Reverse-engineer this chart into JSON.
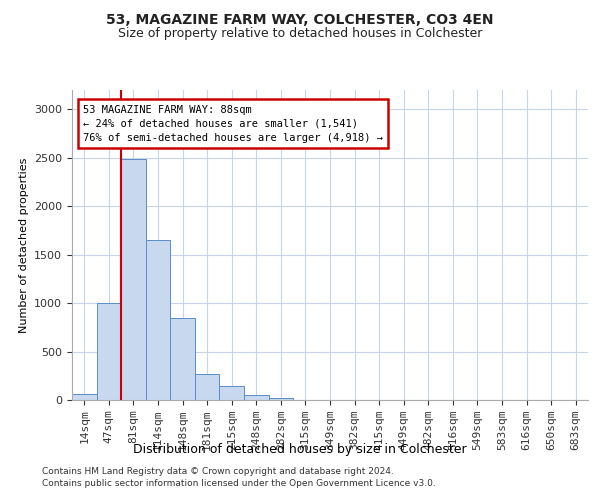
{
  "title1": "53, MAGAZINE FARM WAY, COLCHESTER, CO3 4EN",
  "title2": "Size of property relative to detached houses in Colchester",
  "xlabel": "Distribution of detached houses by size in Colchester",
  "ylabel": "Number of detached properties",
  "bar_labels": [
    "14sqm",
    "47sqm",
    "81sqm",
    "114sqm",
    "148sqm",
    "181sqm",
    "215sqm",
    "248sqm",
    "282sqm",
    "315sqm",
    "349sqm",
    "382sqm",
    "415sqm",
    "449sqm",
    "482sqm",
    "516sqm",
    "549sqm",
    "583sqm",
    "616sqm",
    "650sqm",
    "683sqm"
  ],
  "bar_values": [
    60,
    1000,
    2490,
    1650,
    850,
    270,
    140,
    55,
    20,
    5,
    2,
    1,
    0,
    0,
    0,
    0,
    0,
    0,
    0,
    0,
    0
  ],
  "bar_color": "#c8d9ef",
  "bar_edge_color": "#5b8cc8",
  "property_line_bar_index": 2,
  "annotation_text": "53 MAGAZINE FARM WAY: 88sqm\n← 24% of detached houses are smaller (1,541)\n76% of semi-detached houses are larger (4,918) →",
  "annotation_box_color": "#ffffff",
  "annotation_box_edge_color": "#cc0000",
  "vline_color": "#cc0000",
  "grid_color": "#c8d4e8",
  "ylim": [
    0,
    3200
  ],
  "yticks": [
    0,
    500,
    1000,
    1500,
    2000,
    2500,
    3000
  ],
  "footnote1": "Contains HM Land Registry data © Crown copyright and database right 2024.",
  "footnote2": "Contains public sector information licensed under the Open Government Licence v3.0.",
  "bg_color": "#ffffff"
}
